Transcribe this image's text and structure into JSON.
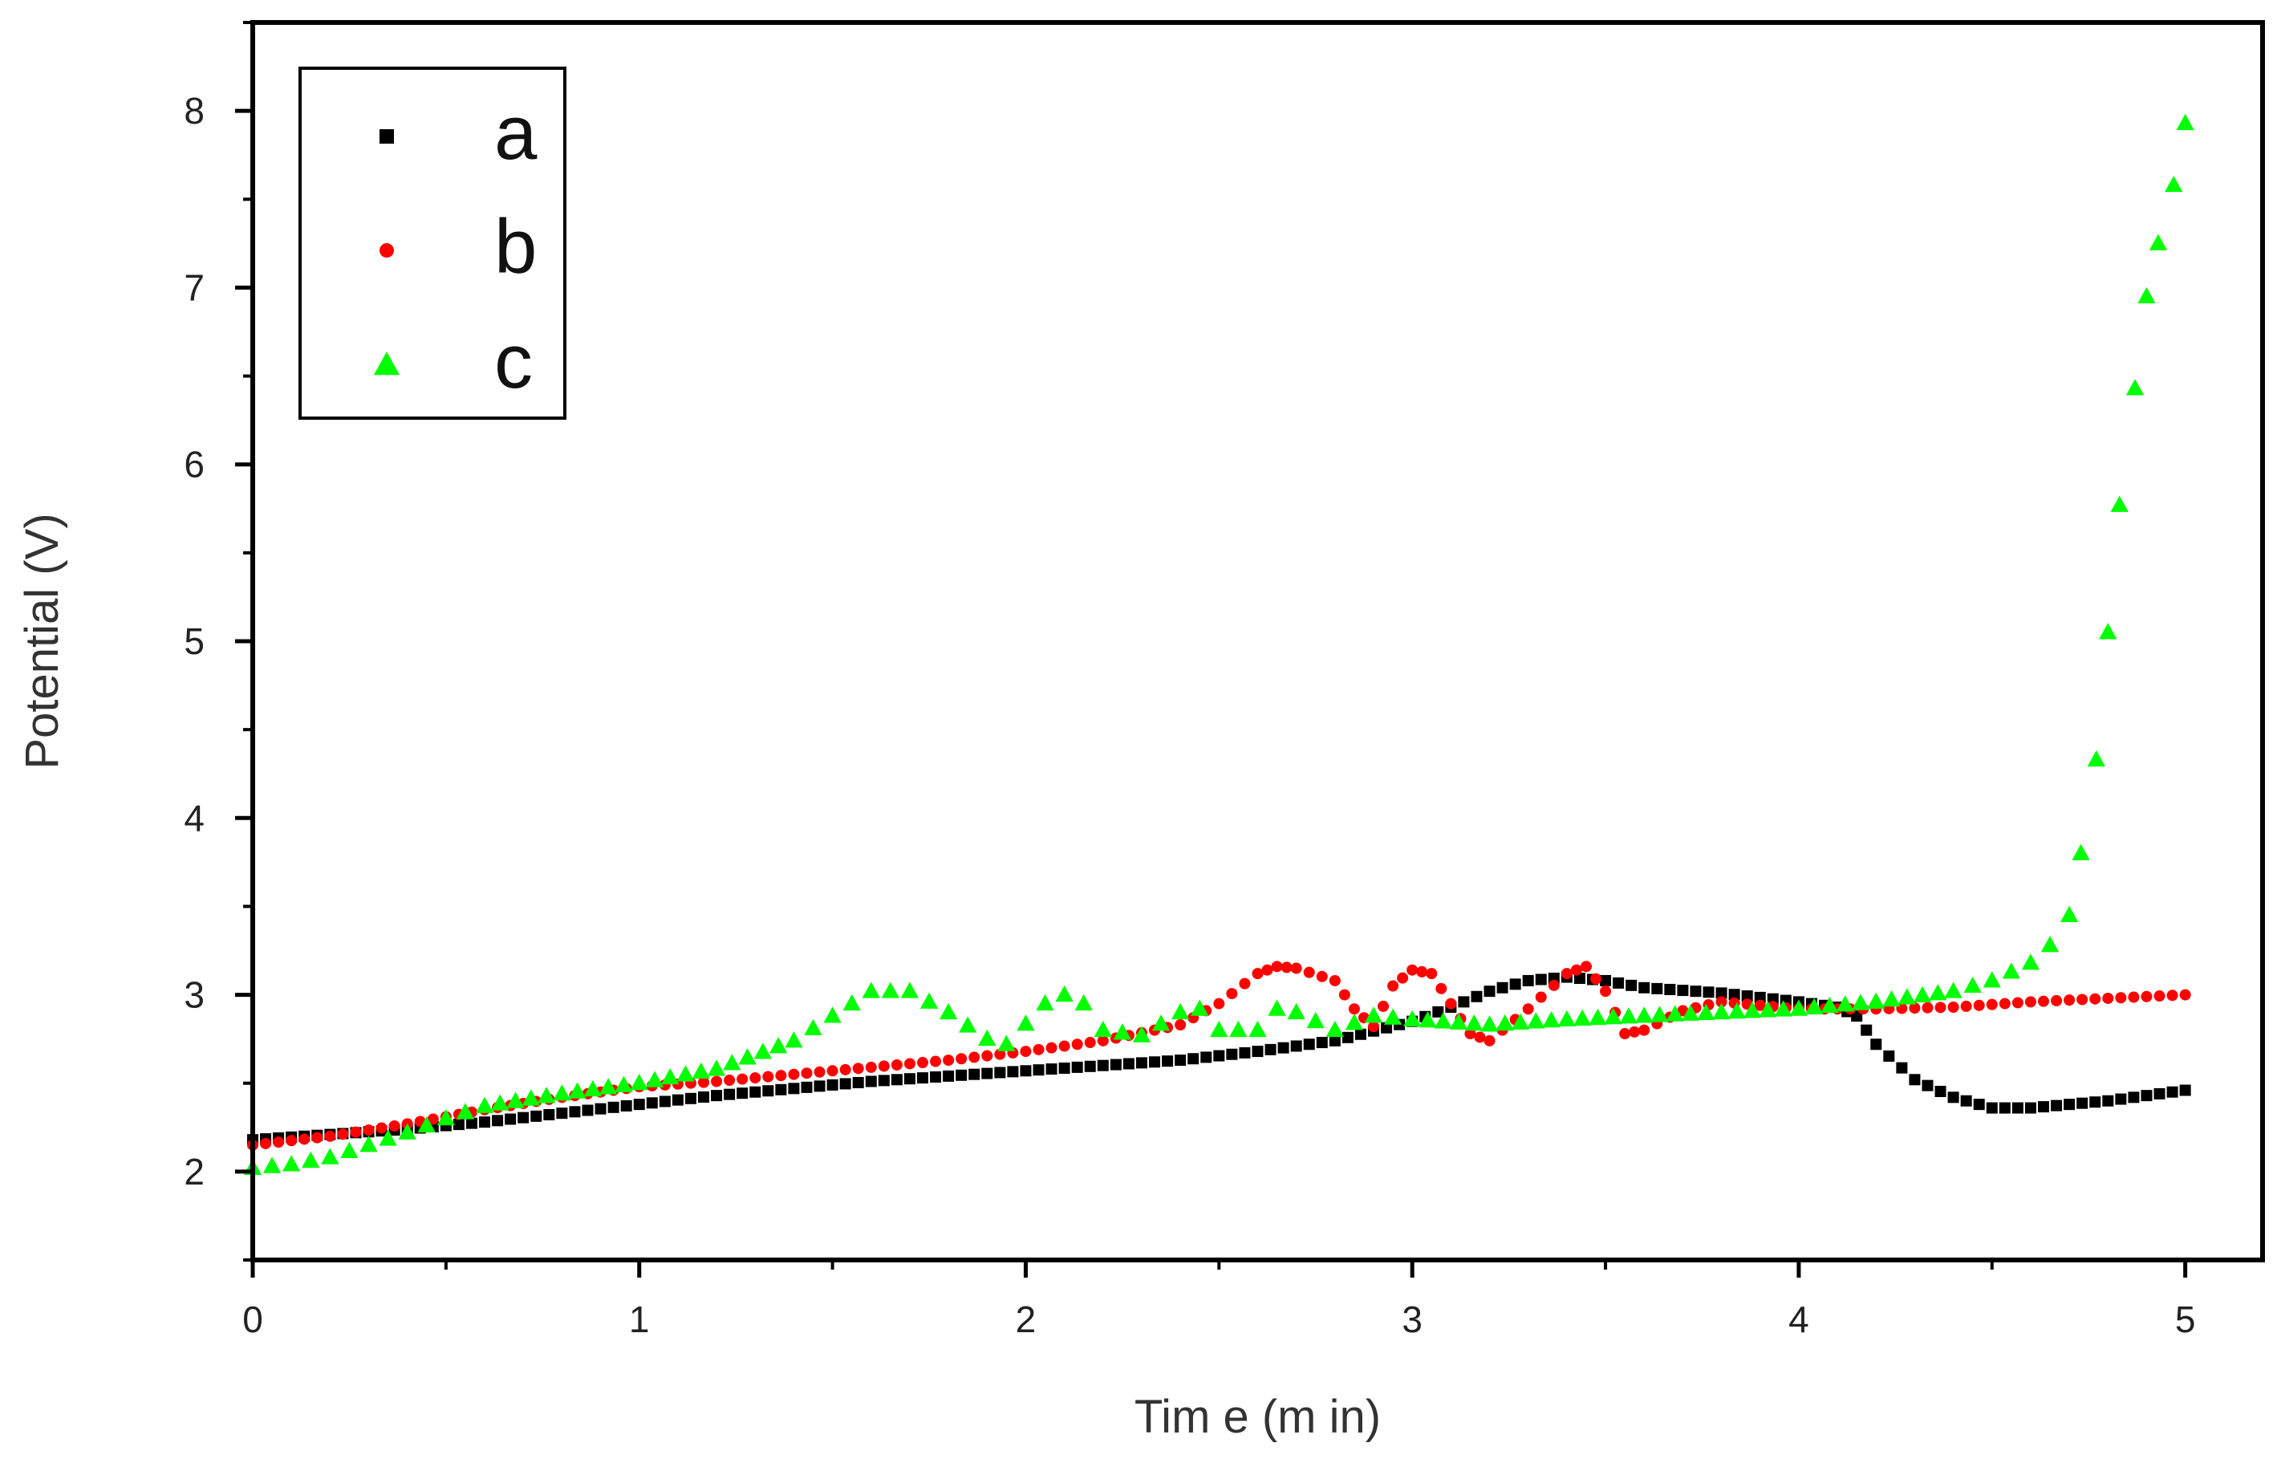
{
  "chart_data": {
    "type": "scatter",
    "title": "",
    "xlabel": "Tim e (m in)",
    "ylabel": "Potential (V)",
    "xlim": [
      0,
      5.2
    ],
    "ylim": [
      1.5,
      8.5
    ],
    "x_ticks": [
      0,
      1,
      2,
      3,
      4,
      5
    ],
    "x_tick_labels": [
      "0",
      "1",
      "2",
      "3",
      "4",
      "5"
    ],
    "y_ticks": [
      2,
      3,
      4,
      5,
      6,
      7,
      8
    ],
    "y_tick_labels": [
      "2",
      "3",
      "4",
      "5",
      "6",
      "7",
      "8"
    ],
    "grid": false,
    "legend_position": "top-left",
    "series": [
      {
        "name": "a",
        "marker": "square",
        "color": "#000000",
        "points": [
          [
            0.0,
            2.18
          ],
          [
            0.2,
            2.21
          ],
          [
            0.4,
            2.24
          ],
          [
            0.6,
            2.28
          ],
          [
            0.8,
            2.33
          ],
          [
            1.0,
            2.38
          ],
          [
            1.2,
            2.43
          ],
          [
            1.4,
            2.47
          ],
          [
            1.6,
            2.51
          ],
          [
            1.8,
            2.54
          ],
          [
            2.0,
            2.57
          ],
          [
            2.2,
            2.6
          ],
          [
            2.4,
            2.63
          ],
          [
            2.6,
            2.68
          ],
          [
            2.8,
            2.74
          ],
          [
            3.0,
            2.85
          ],
          [
            3.1,
            2.93
          ],
          [
            3.2,
            3.02
          ],
          [
            3.3,
            3.08
          ],
          [
            3.4,
            3.1
          ],
          [
            3.5,
            3.08
          ],
          [
            3.6,
            3.04
          ],
          [
            3.8,
            3.01
          ],
          [
            4.0,
            2.96
          ],
          [
            4.1,
            2.93
          ],
          [
            4.15,
            2.88
          ],
          [
            4.2,
            2.72
          ],
          [
            4.3,
            2.52
          ],
          [
            4.4,
            2.42
          ],
          [
            4.5,
            2.36
          ],
          [
            4.6,
            2.36
          ],
          [
            4.7,
            2.38
          ],
          [
            4.8,
            2.4
          ],
          [
            4.9,
            2.43
          ],
          [
            5.0,
            2.46
          ]
        ]
      },
      {
        "name": "b",
        "marker": "circle",
        "color": "#ff0000",
        "points": [
          [
            0.0,
            2.15
          ],
          [
            0.2,
            2.2
          ],
          [
            0.4,
            2.27
          ],
          [
            0.6,
            2.35
          ],
          [
            0.8,
            2.42
          ],
          [
            1.0,
            2.48
          ],
          [
            1.2,
            2.51
          ],
          [
            1.4,
            2.55
          ],
          [
            1.6,
            2.59
          ],
          [
            1.8,
            2.63
          ],
          [
            2.0,
            2.68
          ],
          [
            2.2,
            2.74
          ],
          [
            2.4,
            2.83
          ],
          [
            2.5,
            2.95
          ],
          [
            2.6,
            3.12
          ],
          [
            2.65,
            3.16
          ],
          [
            2.7,
            3.15
          ],
          [
            2.8,
            3.08
          ],
          [
            2.85,
            2.92
          ],
          [
            2.9,
            2.82
          ],
          [
            2.95,
            3.05
          ],
          [
            3.0,
            3.14
          ],
          [
            3.05,
            3.12
          ],
          [
            3.1,
            2.95
          ],
          [
            3.15,
            2.78
          ],
          [
            3.2,
            2.74
          ],
          [
            3.3,
            2.92
          ],
          [
            3.4,
            3.12
          ],
          [
            3.45,
            3.16
          ],
          [
            3.5,
            3.02
          ],
          [
            3.55,
            2.78
          ],
          [
            3.6,
            2.8
          ],
          [
            3.7,
            2.91
          ],
          [
            3.8,
            2.96
          ],
          [
            4.0,
            2.92
          ],
          [
            4.2,
            2.92
          ],
          [
            4.4,
            2.93
          ],
          [
            4.6,
            2.96
          ],
          [
            4.8,
            2.98
          ],
          [
            5.0,
            3.0
          ]
        ]
      },
      {
        "name": "c",
        "marker": "triangle",
        "color": "#00ff00",
        "points": [
          [
            0.0,
            2.02
          ],
          [
            0.1,
            2.04
          ],
          [
            0.2,
            2.08
          ],
          [
            0.3,
            2.15
          ],
          [
            0.4,
            2.22
          ],
          [
            0.5,
            2.3
          ],
          [
            0.6,
            2.37
          ],
          [
            0.8,
            2.44
          ],
          [
            1.0,
            2.5
          ],
          [
            1.2,
            2.58
          ],
          [
            1.4,
            2.74
          ],
          [
            1.5,
            2.88
          ],
          [
            1.6,
            3.02
          ],
          [
            1.7,
            3.02
          ],
          [
            1.8,
            2.9
          ],
          [
            1.9,
            2.75
          ],
          [
            1.95,
            2.72
          ],
          [
            2.05,
            2.95
          ],
          [
            2.1,
            3.0
          ],
          [
            2.15,
            2.95
          ],
          [
            2.2,
            2.8
          ],
          [
            2.3,
            2.77
          ],
          [
            2.4,
            2.9
          ],
          [
            2.45,
            2.92
          ],
          [
            2.5,
            2.8
          ],
          [
            2.6,
            2.8
          ],
          [
            2.65,
            2.92
          ],
          [
            2.7,
            2.9
          ],
          [
            2.8,
            2.8
          ],
          [
            2.9,
            2.88
          ],
          [
            3.0,
            2.86
          ],
          [
            3.2,
            2.83
          ],
          [
            3.4,
            2.86
          ],
          [
            3.6,
            2.88
          ],
          [
            3.8,
            2.9
          ],
          [
            4.0,
            2.92
          ],
          [
            4.2,
            2.96
          ],
          [
            4.4,
            3.02
          ],
          [
            4.5,
            3.08
          ],
          [
            4.6,
            3.18
          ],
          [
            4.65,
            3.28
          ],
          [
            4.7,
            3.45
          ],
          [
            4.73,
            3.8
          ],
          [
            4.77,
            4.33
          ],
          [
            4.8,
            5.05
          ],
          [
            4.83,
            5.77
          ],
          [
            4.87,
            6.43
          ],
          [
            4.9,
            6.95
          ],
          [
            4.93,
            7.25
          ],
          [
            4.97,
            7.58
          ],
          [
            5.0,
            7.93
          ]
        ]
      }
    ]
  }
}
